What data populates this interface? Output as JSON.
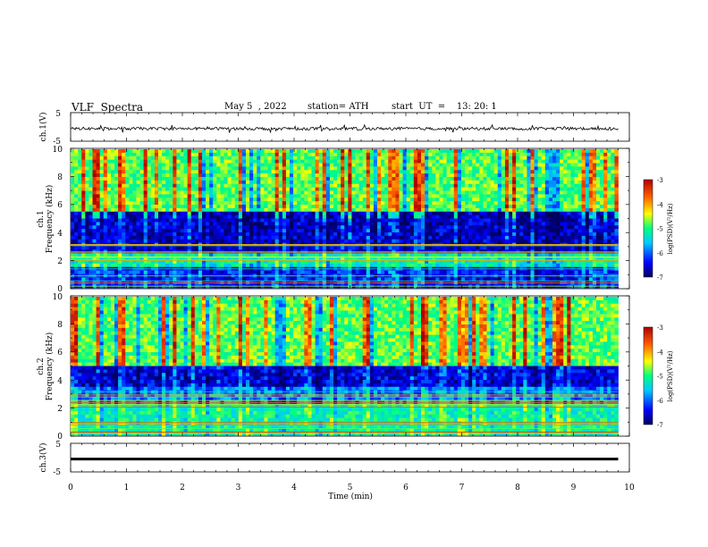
{
  "header": {
    "title": "VLF  Spectra",
    "date": "May 5  , 2022",
    "station": "station= ATH",
    "start": "start  UT  =    13: 20: 1"
  },
  "chart_data": [
    {
      "type": "line",
      "panel": "channel-1 waveform",
      "ylabel": "ch.1(V)",
      "ylim": [
        -5,
        5
      ],
      "yticks": [
        "5",
        "-5"
      ],
      "xlim": [
        0,
        10
      ],
      "baseline_value": -0.6,
      "noise_amplitude": 0.5
    },
    {
      "type": "heatmap",
      "panel": "channel-1 spectrogram",
      "ylabel": "ch.1\nFrequency  (kHz)",
      "ylim": [
        0,
        10
      ],
      "yticks": [
        "0",
        "2",
        "4",
        "6",
        "8",
        "10"
      ],
      "xlim": [
        0,
        9.8
      ],
      "colorbar": {
        "label": "log(PSD)(V²/Hz)",
        "range": [
          -7,
          -3
        ],
        "ticks": [
          "-3",
          "-4",
          "-5",
          "-6",
          "-7"
        ]
      },
      "bands_khz": [
        {
          "from": 0,
          "to": 1.6,
          "level": -6.3
        },
        {
          "from": 1.6,
          "to": 2.6,
          "level": -5.3
        },
        {
          "from": 2.6,
          "to": 5.5,
          "level": -6.6
        },
        {
          "from": 5.5,
          "to": 10,
          "level": -4.8
        }
      ]
    },
    {
      "type": "heatmap",
      "panel": "channel-2 spectrogram",
      "ylabel": "ch.2\nFrequency  (kHz)",
      "ylim": [
        0,
        10
      ],
      "yticks": [
        "0",
        "2",
        "4",
        "6",
        "8",
        "10"
      ],
      "xlim": [
        0,
        9.8
      ],
      "colorbar": {
        "label": "log(PSD)(V²/Hz)",
        "range": [
          -7,
          -3
        ],
        "ticks": [
          "-3",
          "-4",
          "-5",
          "-6",
          "-7"
        ]
      },
      "bands_khz": [
        {
          "from": 0,
          "to": 2.2,
          "level": -5.2
        },
        {
          "from": 2.2,
          "to": 3.5,
          "level": -5.9
        },
        {
          "from": 3.5,
          "to": 5.0,
          "level": -6.5
        },
        {
          "from": 5.0,
          "to": 10,
          "level": -4.8
        }
      ]
    },
    {
      "type": "line",
      "panel": "channel-3 waveform",
      "ylabel": "ch.3(V)",
      "ylim": [
        -5,
        5
      ],
      "yticks": [
        "5",
        "-5"
      ],
      "xlim": [
        0,
        10
      ],
      "baseline_value": -0.5,
      "noise_amplitude": 0.05
    }
  ],
  "xaxis": {
    "label": "Time  (min)",
    "ticks": [
      "0",
      "1",
      "2",
      "3",
      "4",
      "5",
      "6",
      "7",
      "8",
      "9",
      "10"
    ]
  },
  "colors": {
    "colormap": [
      "#000060",
      "#0000ff",
      "#00c8ff",
      "#00ff80",
      "#ffff00",
      "#ff6000",
      "#b00000"
    ]
  }
}
